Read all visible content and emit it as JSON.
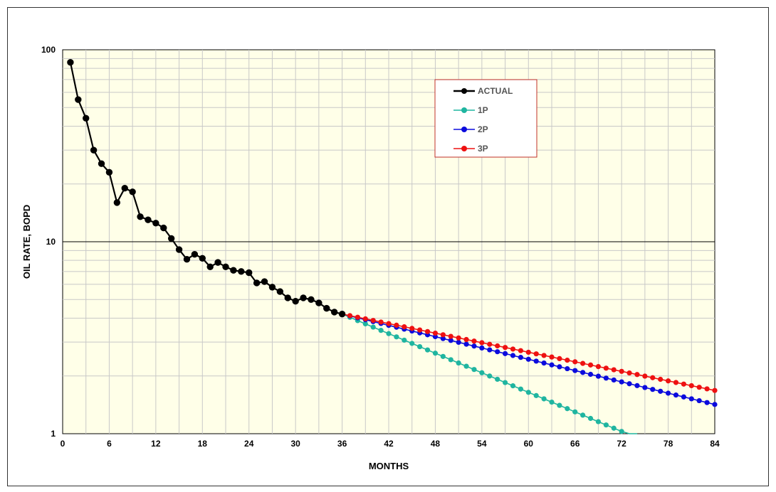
{
  "chart_data": {
    "type": "line",
    "xlabel": "MONTHS",
    "ylabel": "OIL RATE, BOPD",
    "xlim": [
      0,
      84
    ],
    "ylim": [
      1,
      100
    ],
    "yscale": "log",
    "x_ticks": [
      0,
      6,
      12,
      18,
      24,
      30,
      36,
      42,
      48,
      54,
      60,
      66,
      72,
      78,
      84
    ],
    "y_ticks": [
      1,
      10,
      100
    ],
    "grid": true,
    "legend_position": "top-center",
    "series": [
      {
        "name": "ACTUAL",
        "color": "#000000",
        "x": [
          1,
          2,
          3,
          4,
          5,
          6,
          7,
          8,
          9,
          10,
          11,
          12,
          13,
          14,
          15,
          16,
          17,
          18,
          19,
          20,
          21,
          22,
          23,
          24,
          25,
          26,
          27,
          28,
          29,
          30,
          31,
          32,
          33,
          34,
          35,
          36
        ],
        "y": [
          86,
          55,
          44,
          30,
          25.5,
          23,
          16,
          19,
          18.2,
          13.5,
          13,
          12.5,
          11.8,
          10.4,
          9.1,
          8.1,
          8.6,
          8.2,
          7.4,
          7.8,
          7.4,
          7.1,
          7.0,
          6.9,
          6.1,
          6.2,
          5.8,
          5.5,
          5.1,
          4.9,
          5.1,
          5.0,
          4.8,
          4.5,
          4.3,
          4.2
        ]
      },
      {
        "name": "1P",
        "color": "#1fb5a0",
        "x_start": 36,
        "x_end": 74,
        "step": 1,
        "y_start": 4.2,
        "y_end": 0.95
      },
      {
        "name": "2P",
        "color": "#0b0bdd",
        "x_start": 36,
        "x_end": 84,
        "step": 1,
        "y_start": 4.2,
        "y_end": 1.42
      },
      {
        "name": "3P",
        "color": "#ee1111",
        "x_start": 36,
        "x_end": 84,
        "step": 1,
        "y_start": 4.2,
        "y_end": 1.68
      }
    ]
  }
}
